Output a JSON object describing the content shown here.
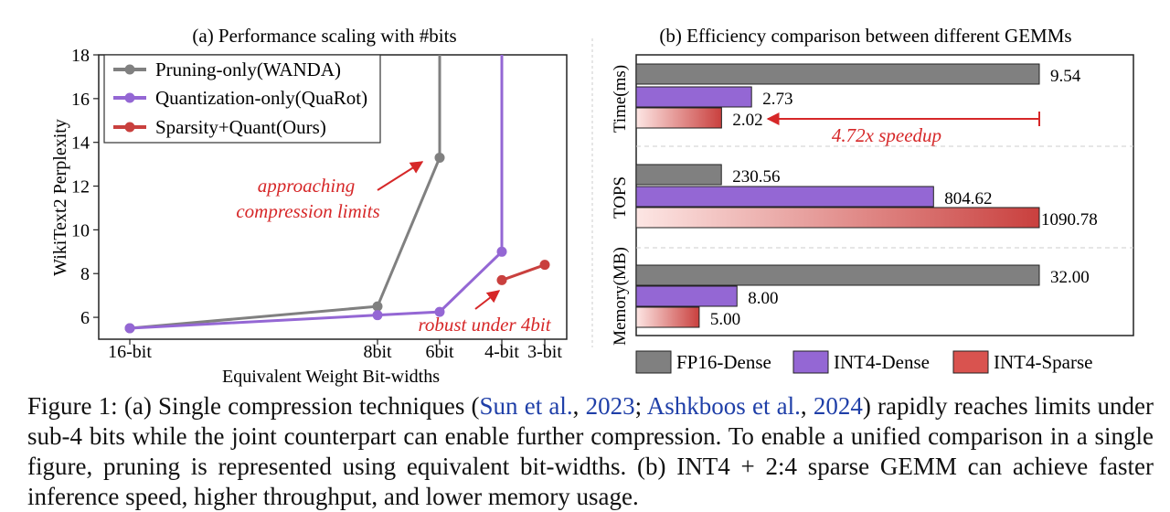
{
  "chart_data": [
    {
      "type": "line",
      "title": "(a) Performance scaling with #bits",
      "xlabel": "Equivalent Weight Bit-widths",
      "ylabel": "WikiText2 Perplexity",
      "x_ticks": [
        "16-bit",
        "8bit",
        "6bit",
        "4-bit",
        "3-bit"
      ],
      "ylim": [
        5,
        18
      ],
      "y_ticks": [
        6,
        8,
        10,
        12,
        14,
        16,
        18
      ],
      "legend_position": "top-left",
      "series": [
        {
          "name": "Pruning-only(WANDA)",
          "color": "#808080",
          "points": [
            {
              "x": "16-bit",
              "y": 5.5
            },
            {
              "x": "8bit",
              "y": 6.5
            },
            {
              "x": "6bit",
              "y": 13.3
            },
            {
              "x": "6bit",
              "y": 18
            }
          ]
        },
        {
          "name": "Quantization-only(QuaRot)",
          "color": "#9467d4",
          "points": [
            {
              "x": "16-bit",
              "y": 5.5
            },
            {
              "x": "8bit",
              "y": 6.1
            },
            {
              "x": "6bit",
              "y": 6.25
            },
            {
              "x": "4-bit",
              "y": 9.0
            },
            {
              "x": "4-bit",
              "y": 18
            }
          ]
        },
        {
          "name": "Sparsity+Quant(Ours)",
          "color": "#c9403e",
          "points": [
            {
              "x": "4-bit",
              "y": 7.7
            },
            {
              "x": "3-bit",
              "y": 8.4
            }
          ]
        }
      ],
      "annotations": [
        {
          "text": "approaching",
          "color": "#d62728"
        },
        {
          "text": "compression limits",
          "color": "#d62728"
        },
        {
          "text": "robust under 4bit",
          "color": "#d62728"
        }
      ]
    },
    {
      "type": "bar",
      "orientation": "horizontal",
      "title": "(b) Efficiency comparison between different GEMMs",
      "groups": [
        "Time(ms)",
        "TOPS",
        "Memory(MB)"
      ],
      "series": [
        {
          "name": "FP16-Dense",
          "color": "#808080",
          "values": [
            9.54,
            230.56,
            32.0
          ],
          "labels": [
            "9.54",
            "230.56",
            "32.00"
          ]
        },
        {
          "name": "INT4-Dense",
          "color": "#9467d4",
          "values": [
            2.73,
            804.62,
            8.0
          ],
          "labels": [
            "2.73",
            "804.62",
            "8.00"
          ]
        },
        {
          "name": "INT4-Sparse",
          "color": "#d9534f",
          "values": [
            2.02,
            1090.78,
            5.0
          ],
          "labels": [
            "2.02",
            "1090.78",
            "5.00"
          ]
        }
      ],
      "annotation": "4.72x speedup",
      "legend_position": "bottom"
    }
  ],
  "caption": {
    "pre": "Figure 1: (a) Single compression techniques (",
    "cite1": "Sun et al.",
    "mid1": ", ",
    "year1": "2023",
    "mid2": "; ",
    "cite2": "Ashkboos et al.",
    "mid3": ", ",
    "year2": "2024",
    "post": ") rapidly reaches limits under sub-4 bits while the joint counterpart can enable further compression. To enable a unified comparison in a single figure, pruning is represented using equivalent bit-widths. (b) INT4 + 2:4 sparse GEMM can achieve faster inference speed, higher throughput, and lower memory usage."
  }
}
